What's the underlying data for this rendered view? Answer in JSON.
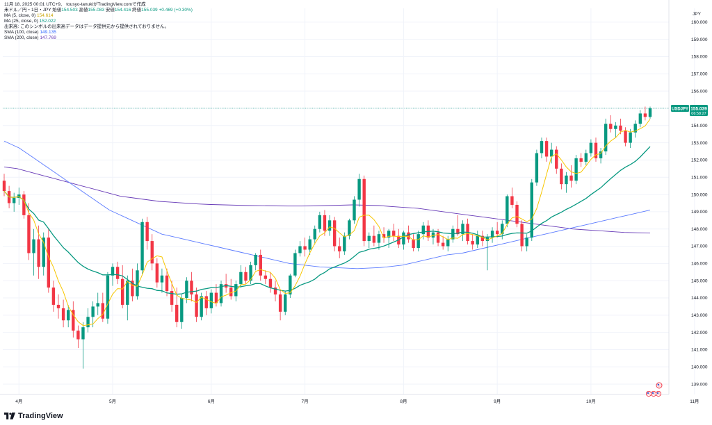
{
  "header": {
    "line1": "11月 18, 2025 00:01 UTC+9、 tousyo-tanukiがTradingView.comで作成",
    "symbol": "米ドル／円・1日・JPY",
    "ohlc_open_label": "始値",
    "ohlc_open": "154.503",
    "ohlc_high_label": "高値",
    "ohlc_high": "155.083",
    "ohlc_low_label": "安値",
    "ohlc_low": "154.416",
    "ohlc_close_label": "終値",
    "ohlc_close": "155.039",
    "change": "+0.469 (+0.30%)",
    "ma5_label": "MA (5, close, 0)",
    "ma5_value": "154.614",
    "ma25_label": "MA (25, close, 0)",
    "ma25_value": "152.022",
    "volume_note": "出来高: このシンボルの出来高データはデータ提供元から提供されておりません。",
    "sma100_label": "SMA (100, close)",
    "sma100_value": "149.135",
    "sma200_label": "SMA (200, close)",
    "sma200_value": "147.769"
  },
  "branding": {
    "name": "TradingView"
  },
  "colors": {
    "up": "#089981",
    "down": "#f23645",
    "ma5": "#f7c600",
    "ma25": "#089981",
    "sma100": "#5b7bff",
    "sma200": "#673ab7",
    "price_label_bg": "#089981"
  },
  "chart_data": {
    "type": "candlestick",
    "currency": "JPY",
    "price_tag": {
      "symbol": "USDJPY",
      "price": "155.039",
      "countdown": "06:58:27"
    },
    "y_ticks": [
      "160.000",
      "159.000",
      "158.000",
      "157.000",
      "156.000",
      "155.000",
      "154.000",
      "153.000",
      "152.000",
      "151.000",
      "150.000",
      "149.000",
      "148.000",
      "147.000",
      "146.000",
      "145.000",
      "144.000",
      "143.000",
      "142.000",
      "141.000",
      "140.000",
      "139.000"
    ],
    "ylim": [
      138.4,
      160.8
    ],
    "x_ticks": [
      {
        "label": "4月",
        "index": 3
      },
      {
        "label": "5月",
        "index": 22
      },
      {
        "label": "6月",
        "index": 42
      },
      {
        "label": "7月",
        "index": 61
      },
      {
        "label": "8月",
        "index": 81
      },
      {
        "label": "9月",
        "index": 100
      },
      {
        "label": "10月",
        "index": 119
      },
      {
        "label": "11月",
        "index": 140
      }
    ],
    "candles": [
      [
        150.8,
        151.2,
        149.9,
        150.2
      ],
      [
        150.2,
        150.5,
        149.2,
        149.5
      ],
      [
        149.5,
        150.1,
        149.0,
        149.8
      ],
      [
        149.8,
        150.4,
        149.4,
        150.0
      ],
      [
        150.0,
        150.2,
        148.6,
        148.8
      ],
      [
        148.8,
        149.5,
        146.2,
        146.6
      ],
      [
        146.6,
        148.0,
        145.3,
        147.4
      ],
      [
        147.4,
        148.2,
        145.1,
        145.8
      ],
      [
        145.8,
        147.8,
        145.3,
        147.5
      ],
      [
        147.5,
        148.0,
        144.3,
        144.6
      ],
      [
        144.6,
        145.0,
        143.2,
        143.6
      ],
      [
        143.6,
        144.2,
        142.8,
        143.4
      ],
      [
        143.4,
        143.9,
        142.3,
        142.7
      ],
      [
        142.7,
        143.6,
        142.3,
        143.3
      ],
      [
        143.3,
        143.8,
        141.7,
        142.1
      ],
      [
        142.1,
        142.4,
        141.1,
        141.6
      ],
      [
        141.6,
        142.6,
        139.9,
        142.3
      ],
      [
        142.3,
        143.4,
        142.0,
        142.9
      ],
      [
        142.9,
        143.8,
        142.3,
        143.5
      ],
      [
        143.5,
        144.3,
        143.0,
        143.7
      ],
      [
        143.7,
        144.3,
        142.6,
        142.8
      ],
      [
        142.8,
        145.5,
        142.5,
        145.3
      ],
      [
        145.3,
        146.0,
        144.7,
        145.8
      ],
      [
        145.8,
        146.1,
        144.8,
        145.1
      ],
      [
        145.1,
        145.9,
        143.4,
        143.6
      ],
      [
        143.6,
        145.3,
        142.7,
        145.0
      ],
      [
        145.0,
        145.7,
        143.8,
        144.1
      ],
      [
        144.1,
        146.0,
        143.9,
        145.6
      ],
      [
        145.6,
        148.6,
        145.4,
        148.4
      ],
      [
        148.4,
        148.7,
        146.8,
        147.3
      ],
      [
        147.3,
        147.7,
        145.6,
        146.0
      ],
      [
        146.0,
        146.3,
        144.6,
        144.9
      ],
      [
        144.9,
        145.7,
        144.3,
        145.3
      ],
      [
        145.3,
        145.7,
        144.1,
        144.4
      ],
      [
        144.4,
        145.0,
        143.2,
        143.6
      ],
      [
        143.6,
        144.6,
        142.3,
        142.6
      ],
      [
        142.6,
        144.2,
        142.2,
        144.0
      ],
      [
        144.0,
        145.2,
        143.7,
        145.0
      ],
      [
        145.0,
        145.5,
        143.8,
        144.2
      ],
      [
        144.2,
        144.6,
        142.6,
        142.9
      ],
      [
        142.9,
        144.3,
        142.7,
        144.1
      ],
      [
        144.1,
        144.4,
        143.0,
        143.4
      ],
      [
        143.4,
        144.5,
        143.1,
        144.3
      ],
      [
        144.3,
        144.8,
        143.5,
        143.7
      ],
      [
        143.7,
        145.0,
        143.5,
        144.8
      ],
      [
        144.8,
        145.4,
        144.3,
        144.6
      ],
      [
        144.6,
        145.1,
        143.9,
        144.1
      ],
      [
        144.1,
        145.0,
        143.8,
        144.8
      ],
      [
        144.8,
        145.9,
        144.6,
        145.5
      ],
      [
        145.5,
        145.8,
        144.8,
        145.0
      ],
      [
        145.0,
        146.1,
        144.8,
        145.9
      ],
      [
        145.9,
        146.6,
        145.6,
        146.5
      ],
      [
        146.5,
        146.8,
        145.0,
        145.3
      ],
      [
        145.3,
        145.6,
        144.8,
        145.1
      ],
      [
        145.1,
        145.5,
        144.3,
        144.6
      ],
      [
        144.6,
        145.0,
        143.8,
        144.2
      ],
      [
        144.2,
        144.5,
        142.7,
        143.2
      ],
      [
        143.2,
        144.4,
        143.0,
        144.2
      ],
      [
        144.2,
        145.4,
        144.0,
        145.3
      ],
      [
        145.3,
        146.8,
        145.2,
        146.6
      ],
      [
        146.6,
        147.3,
        146.4,
        147.0
      ],
      [
        147.0,
        147.5,
        146.4,
        146.8
      ],
      [
        146.8,
        147.6,
        146.5,
        147.4
      ],
      [
        147.4,
        148.2,
        147.1,
        148.0
      ],
      [
        148.0,
        149.0,
        147.8,
        148.8
      ],
      [
        148.8,
        149.1,
        147.6,
        147.9
      ],
      [
        147.9,
        148.8,
        147.6,
        148.5
      ],
      [
        148.5,
        148.7,
        146.7,
        147.0
      ],
      [
        147.0,
        147.5,
        146.3,
        146.7
      ],
      [
        146.7,
        147.8,
        146.5,
        147.6
      ],
      [
        147.6,
        148.6,
        147.4,
        148.5
      ],
      [
        148.5,
        149.9,
        148.3,
        149.7
      ],
      [
        149.7,
        151.2,
        149.3,
        150.9
      ],
      [
        150.9,
        151.1,
        147.0,
        147.3
      ],
      [
        147.3,
        147.8,
        146.9,
        147.6
      ],
      [
        147.6,
        148.2,
        147.0,
        147.2
      ],
      [
        147.2,
        147.9,
        146.8,
        147.7
      ],
      [
        147.7,
        148.1,
        147.2,
        147.5
      ],
      [
        147.5,
        148.0,
        146.9,
        147.9
      ],
      [
        147.9,
        148.3,
        147.3,
        147.6
      ],
      [
        147.6,
        148.0,
        146.9,
        147.1
      ],
      [
        147.1,
        147.9,
        146.8,
        147.8
      ],
      [
        147.8,
        148.2,
        147.2,
        147.4
      ],
      [
        147.4,
        147.7,
        146.7,
        146.9
      ],
      [
        146.9,
        147.9,
        146.7,
        147.7
      ],
      [
        147.7,
        148.4,
        147.4,
        148.2
      ],
      [
        148.2,
        148.5,
        147.3,
        147.5
      ],
      [
        147.5,
        148.0,
        147.1,
        147.8
      ],
      [
        147.8,
        148.0,
        147.0,
        147.2
      ],
      [
        147.2,
        147.6,
        146.8,
        147.0
      ],
      [
        147.0,
        147.6,
        146.7,
        147.4
      ],
      [
        147.4,
        148.2,
        147.2,
        148.0
      ],
      [
        148.0,
        148.8,
        147.6,
        147.7
      ],
      [
        147.7,
        148.5,
        147.3,
        148.3
      ],
      [
        148.3,
        148.6,
        147.1,
        147.3
      ],
      [
        147.3,
        147.7,
        146.8,
        147.1
      ],
      [
        147.1,
        147.9,
        146.9,
        147.6
      ],
      [
        147.6,
        147.9,
        147.0,
        147.3
      ],
      [
        147.3,
        147.7,
        145.6,
        147.5
      ],
      [
        147.5,
        148.1,
        147.2,
        147.9
      ],
      [
        147.9,
        148.4,
        147.5,
        147.7
      ],
      [
        147.7,
        148.5,
        147.4,
        148.3
      ],
      [
        148.3,
        150.0,
        148.1,
        149.9
      ],
      [
        149.9,
        150.4,
        149.2,
        149.4
      ],
      [
        149.4,
        149.6,
        148.1,
        148.3
      ],
      [
        148.3,
        148.5,
        146.7,
        147.0
      ],
      [
        147.0,
        147.7,
        146.7,
        147.5
      ],
      [
        147.5,
        150.9,
        147.3,
        150.7
      ],
      [
        150.7,
        152.6,
        150.5,
        152.4
      ],
      [
        152.4,
        153.3,
        152.1,
        153.1
      ],
      [
        153.1,
        153.3,
        151.9,
        152.2
      ],
      [
        152.2,
        153.0,
        151.8,
        152.6
      ],
      [
        152.6,
        152.8,
        151.2,
        151.5
      ],
      [
        151.5,
        151.8,
        150.3,
        150.6
      ],
      [
        150.6,
        151.3,
        150.1,
        151.1
      ],
      [
        151.1,
        151.7,
        150.4,
        150.8
      ],
      [
        150.8,
        152.3,
        150.6,
        152.1
      ],
      [
        152.1,
        152.4,
        151.6,
        151.9
      ],
      [
        151.9,
        152.6,
        151.7,
        152.4
      ],
      [
        152.4,
        153.2,
        152.2,
        153.0
      ],
      [
        153.0,
        153.3,
        151.9,
        152.1
      ],
      [
        152.1,
        152.7,
        151.8,
        152.5
      ],
      [
        152.5,
        154.4,
        152.3,
        154.1
      ],
      [
        154.1,
        154.6,
        153.6,
        153.8
      ],
      [
        153.8,
        154.2,
        153.3,
        154.0
      ],
      [
        154.0,
        154.4,
        153.5,
        153.7
      ],
      [
        153.7,
        153.9,
        152.8,
        153.0
      ],
      [
        153.0,
        153.8,
        152.7,
        153.6
      ],
      [
        153.6,
        154.3,
        153.3,
        154.1
      ],
      [
        154.1,
        154.9,
        153.9,
        154.7
      ],
      [
        154.7,
        155.1,
        154.3,
        154.5
      ],
      [
        154.5,
        155.1,
        154.4,
        155.0
      ]
    ],
    "series": [
      {
        "name": "MA (5, close, 0)",
        "key": "ma5"
      },
      {
        "name": "MA (25, close, 0)",
        "key": "ma25"
      },
      {
        "name": "SMA (100, close)",
        "key": "sma100",
        "values": [
          153.1,
          152.9,
          152.7,
          152.4,
          152.1,
          151.8,
          151.5,
          151.2,
          150.9,
          150.6,
          150.3,
          150.0,
          149.7,
          149.4,
          149.1,
          148.9,
          148.7,
          148.5,
          148.3,
          148.1,
          147.9,
          147.7,
          147.6,
          147.5,
          147.4,
          147.3,
          147.2,
          147.1,
          147.0,
          146.9,
          146.8,
          146.7,
          146.6,
          146.5,
          146.4,
          146.3,
          146.2,
          146.1,
          146.0,
          145.95,
          145.9,
          145.85,
          145.8,
          145.78,
          145.76,
          145.74,
          145.72,
          145.7,
          145.72,
          145.74,
          145.76,
          145.8,
          145.85,
          145.9,
          146.0,
          146.1,
          146.2,
          146.3,
          146.4,
          146.5,
          146.55,
          146.6,
          146.7,
          146.8,
          146.9,
          147.0,
          147.1,
          147.2,
          147.3,
          147.4,
          147.5,
          147.6,
          147.7,
          147.8,
          147.9,
          148.0,
          148.1,
          148.2,
          148.3,
          148.4,
          148.5,
          148.6,
          148.7,
          148.8,
          148.9,
          149.0,
          149.1
        ]
      },
      {
        "name": "SMA (200, close)",
        "key": "sma200",
        "values": [
          151.6,
          151.5,
          151.3,
          151.1,
          150.9,
          150.7,
          150.5,
          150.3,
          150.1,
          149.9,
          149.8,
          149.7,
          149.6,
          149.55,
          149.5,
          149.45,
          149.42,
          149.4,
          149.38,
          149.36,
          149.35,
          149.34,
          149.33,
          149.33,
          149.34,
          149.36,
          149.38,
          149.4,
          149.38,
          149.36,
          149.3,
          149.25,
          149.2,
          149.1,
          149.0,
          148.9,
          148.8,
          148.7,
          148.6,
          148.5,
          148.4,
          148.3,
          148.2,
          148.1,
          148.0,
          147.95,
          147.9,
          147.85,
          147.8,
          147.78,
          147.77
        ]
      }
    ]
  }
}
